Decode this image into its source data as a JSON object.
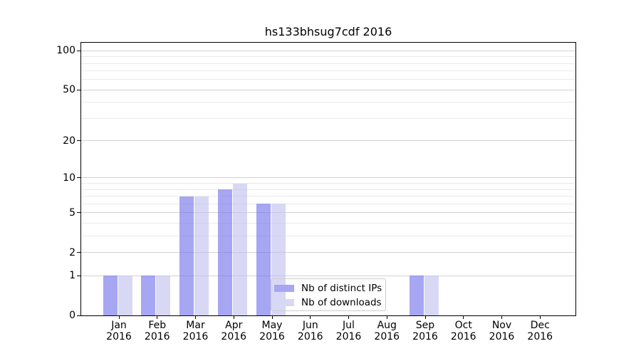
{
  "title": "hs133bhsug7cdf 2016",
  "x_axis": {
    "months": [
      "Jan",
      "Feb",
      "Mar",
      "Apr",
      "May",
      "Jun",
      "Jul",
      "Aug",
      "Sep",
      "Oct",
      "Nov",
      "Dec"
    ],
    "year": "2016"
  },
  "y_axis": {
    "tick_values": [
      0,
      1,
      2,
      5,
      10,
      20,
      50,
      100
    ],
    "tick_labels": [
      "0",
      "1",
      "2",
      "5",
      "10",
      "20",
      "50",
      "100"
    ],
    "minor_gridline_values": [
      3,
      4,
      6,
      7,
      8,
      9,
      30,
      40,
      60,
      70,
      80,
      90
    ],
    "scale": "log1p"
  },
  "legend": {
    "items": [
      {
        "label": "Nb of distinct IPs",
        "swatch_color": "#a6a6f2"
      },
      {
        "label": "Nb of downloads",
        "swatch_color": "#d8d8f5"
      }
    ]
  },
  "colors": {
    "bar_distinct_ips": "rgba(118,118,235,0.65)",
    "bar_downloads": "rgba(195,195,240,0.65)",
    "grid_major": "#d2d2d2",
    "grid_minor": "#eaeaea",
    "spine": "#000000",
    "legend_border": "#cccccc",
    "text": "#000000"
  },
  "chart_data": {
    "type": "bar",
    "title": "hs133bhsug7cdf 2016",
    "categories": [
      "Jan 2016",
      "Feb 2016",
      "Mar 2016",
      "Apr 2016",
      "May 2016",
      "Jun 2016",
      "Jul 2016",
      "Aug 2016",
      "Sep 2016",
      "Oct 2016",
      "Nov 2016",
      "Dec 2016"
    ],
    "series": [
      {
        "name": "Nb of distinct IPs",
        "values": [
          1,
          1,
          7,
          8,
          6,
          0,
          0,
          0,
          1,
          0,
          0,
          0
        ]
      },
      {
        "name": "Nb of downloads",
        "values": [
          1,
          1,
          7,
          9,
          6,
          0,
          0,
          0,
          1,
          0,
          0,
          0
        ]
      }
    ],
    "y_scale": "log1p",
    "y_ticks": [
      0,
      1,
      2,
      5,
      10,
      20,
      50,
      100
    ],
    "ylim": [
      0,
      117
    ],
    "xlabel": "",
    "ylabel": "",
    "grid": "both-horizontal",
    "legend_position": "lower center"
  }
}
